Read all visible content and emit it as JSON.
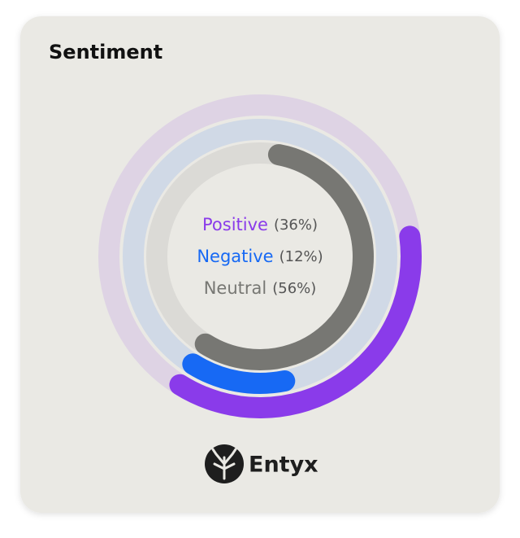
{
  "chart_data": {
    "type": "radial-bar",
    "title": "Sentiment",
    "categories": [
      "Positive",
      "Negative",
      "Neutral"
    ],
    "values": [
      36,
      12,
      56
    ],
    "value_labels": [
      "(36%)",
      "(12%)",
      "(56%)"
    ],
    "colors": [
      "#8a3bea",
      "#1769f4",
      "#777773"
    ]
  },
  "brand": "Entyx"
}
